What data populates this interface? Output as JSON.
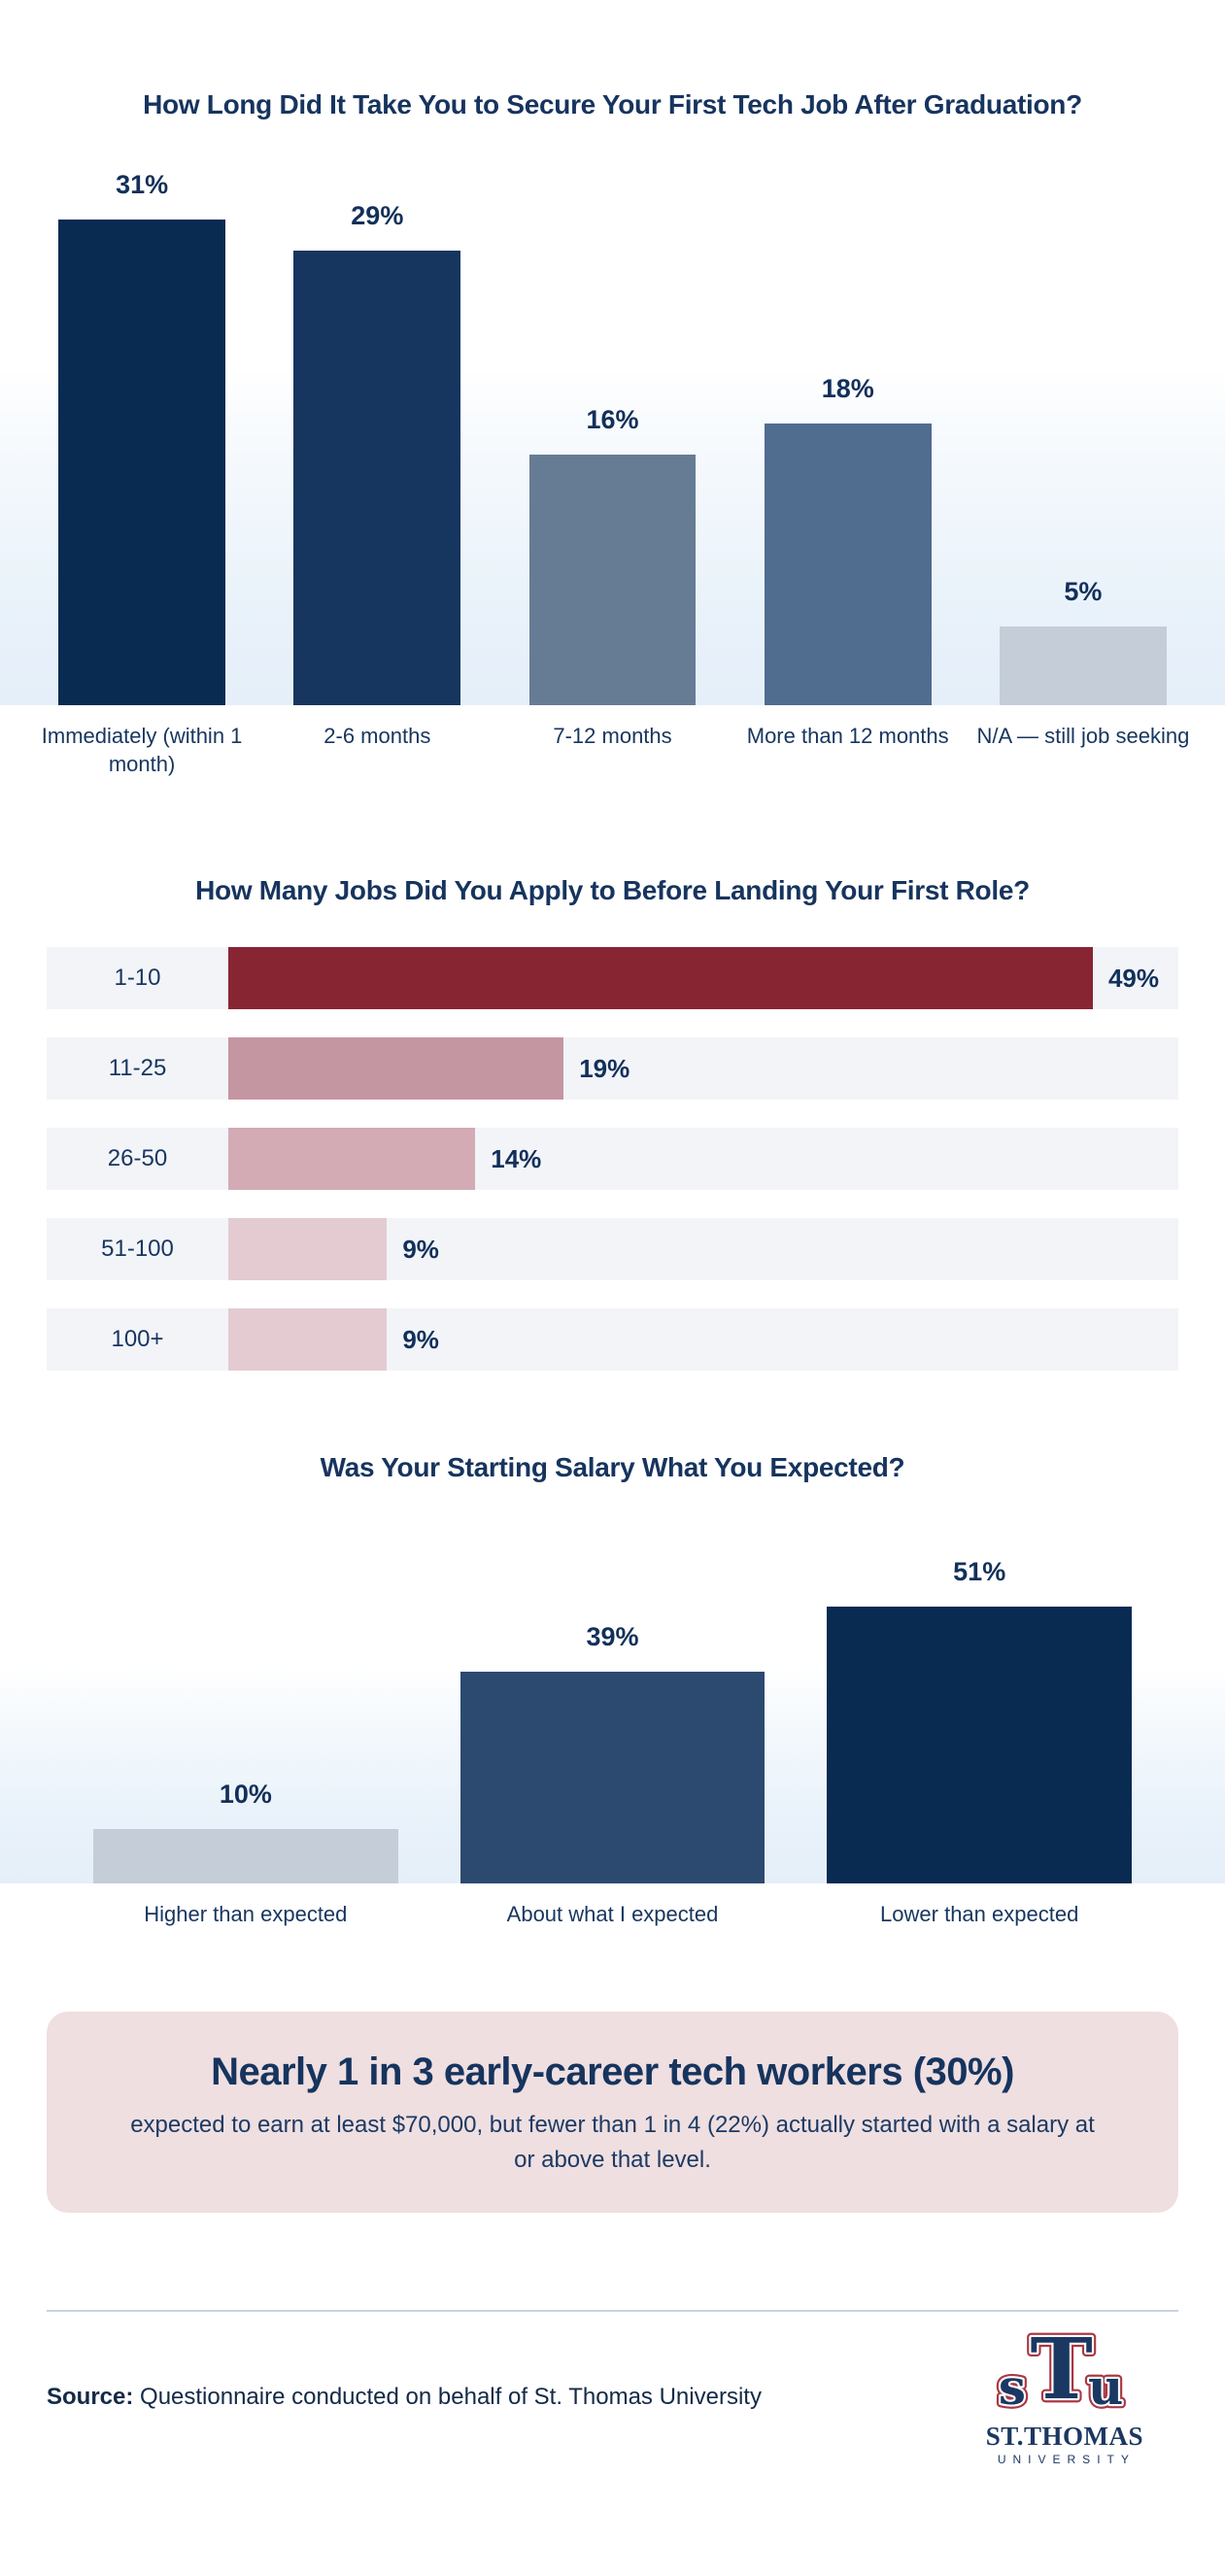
{
  "page": {
    "background": "#ffffff"
  },
  "chart_data": [
    {
      "type": "bar",
      "title": "How Long Did It Take You to Secure Your First Tech Job After Graduation?",
      "categories": [
        "Immediately (within 1 month)",
        "2-6 months",
        "7-12 months",
        "More than 12 months",
        "N/A — still job seeking"
      ],
      "values": [
        31,
        29,
        16,
        18,
        5
      ],
      "labels": [
        "31%",
        "29%",
        "16%",
        "18%",
        "5%"
      ],
      "bar_colors": [
        "#092B52",
        "#16365F",
        "#667C94",
        "#506C8E",
        "#C5CDD8"
      ],
      "ylim": [
        0,
        31
      ],
      "ymax": 31,
      "xlabel": "",
      "ylabel": "",
      "grid": false,
      "legend": false
    },
    {
      "type": "bar-horizontal",
      "title": "How Many Jobs Did You Apply to Before Landing Your First Role?",
      "categories": [
        "1-10",
        "11-25",
        "26-50",
        "51-100",
        "100+"
      ],
      "values": [
        49,
        19,
        14,
        9,
        9
      ],
      "labels": [
        "49%",
        "19%",
        "14%",
        "9%",
        "9%"
      ],
      "bar_colors": [
        "#872533",
        "#C496A1",
        "#D2ABB4",
        "#E3CBD1",
        "#E3CBD1"
      ],
      "xlim": [
        0,
        49
      ],
      "xmax": 49,
      "row_background": "#F2F4F8",
      "grid": false,
      "legend": false
    },
    {
      "type": "bar",
      "title": "Was Your Starting Salary What You Expected?",
      "categories": [
        "Higher than expected",
        "About what I expected",
        "Lower than expected"
      ],
      "values": [
        10,
        39,
        51
      ],
      "labels": [
        "10%",
        "39%",
        "51%"
      ],
      "bar_colors": [
        "#C5CDD8",
        "#2C4A70",
        "#092B52"
      ],
      "ylim": [
        0,
        51
      ],
      "ymax": 51,
      "grid": false,
      "legend": false
    }
  ],
  "callout": {
    "heading": "Nearly 1 in 3 early-career tech workers (30%)",
    "body": "expected to earn at least $70,000, but fewer than 1 in 4 (22%) actually started with a salary at or above that level.",
    "background": "#EFDFE1"
  },
  "footer": {
    "source_label": "Source:",
    "source_text": " Questionnaire conducted on behalf of St. Thomas University",
    "logo": {
      "letters": [
        "s",
        "T",
        "u"
      ],
      "name": "ST.THOMAS",
      "subtitle": "UNIVERSITY",
      "navy": "#1B3862",
      "red": "#AA3743"
    }
  },
  "colors": {
    "text_navy": "#16345E",
    "divider": "#C9D4DF",
    "plot_gradient_bottom": "#E5EFF9"
  }
}
